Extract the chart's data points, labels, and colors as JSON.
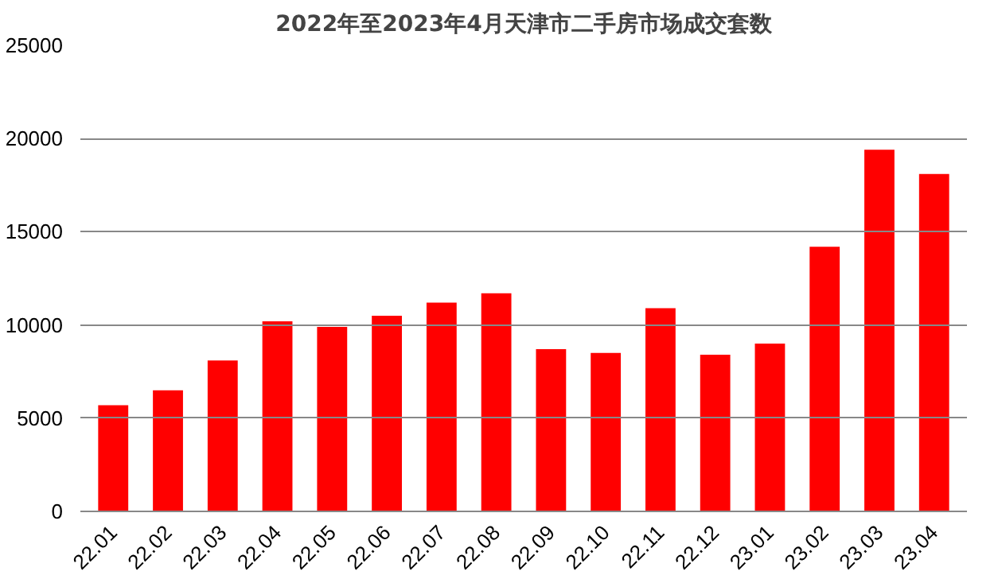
{
  "chart_data": {
    "type": "bar",
    "title": "2022年至2023年4月天津市二手房市场成交套数",
    "categories": [
      "22.01",
      "22.02",
      "22.03",
      "22.04",
      "22.05",
      "22.06",
      "22.07",
      "22.08",
      "22.09",
      "22.10",
      "22.11",
      "22.12",
      "23.01",
      "23.02",
      "23.03",
      "23.04"
    ],
    "values": [
      5700,
      6500,
      8100,
      10200,
      9900,
      10500,
      11200,
      11700,
      8700,
      8500,
      10900,
      8400,
      9000,
      14200,
      19400,
      18100
    ],
    "color": "#ff0000",
    "ylim": [
      0,
      25000
    ],
    "yticks": [
      0,
      5000,
      10000,
      15000,
      20000,
      25000
    ],
    "grid": "y"
  }
}
